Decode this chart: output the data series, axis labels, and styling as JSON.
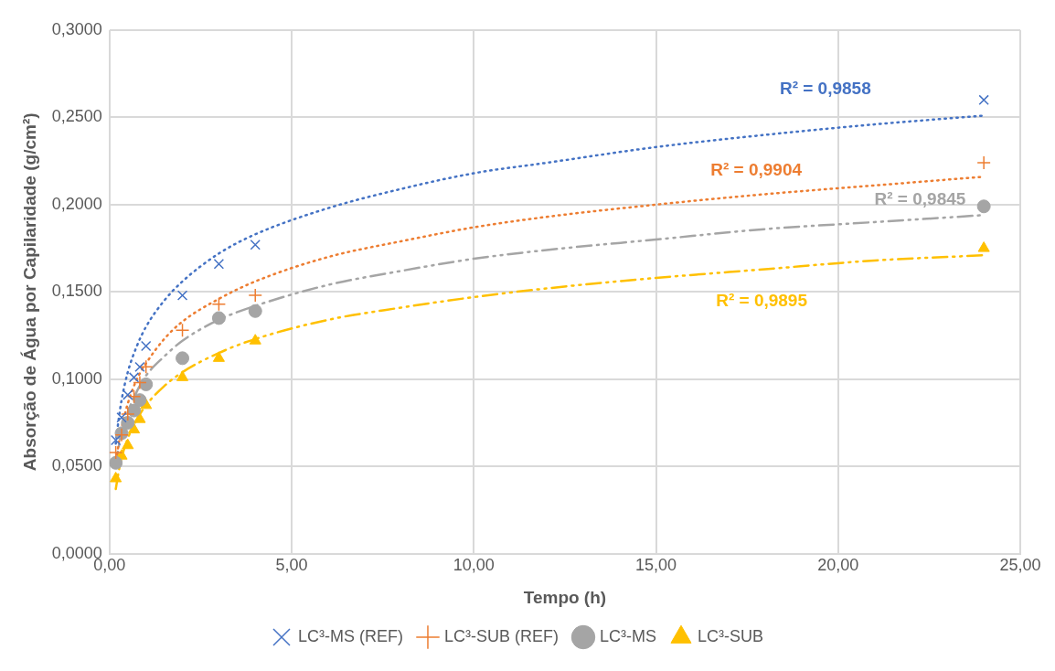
{
  "chart_data": {
    "type": "scatter",
    "xlabel": "Tempo (h)",
    "ylabel": "Absorção de Água por Capilaridade (g/cm²)",
    "xlim": [
      0,
      25
    ],
    "xticks": [
      {
        "value": 0,
        "label": "0,00"
      },
      {
        "value": 5,
        "label": "5,00"
      },
      {
        "value": 10,
        "label": "10,00"
      },
      {
        "value": 15,
        "label": "15,00"
      },
      {
        "value": 20,
        "label": "20,00"
      },
      {
        "value": 25,
        "label": "25,00"
      }
    ],
    "ylim": [
      0,
      0.3
    ],
    "yticks": [
      {
        "value": 0,
        "label": "0,0000"
      },
      {
        "value": 0.05,
        "label": "0,0500"
      },
      {
        "value": 0.1,
        "label": "0,1000"
      },
      {
        "value": 0.15,
        "label": "0,1500"
      },
      {
        "value": 0.2,
        "label": "0,2000"
      },
      {
        "value": 0.25,
        "label": "0,2500"
      },
      {
        "value": 0.3,
        "label": "0,3000"
      }
    ],
    "grid": true,
    "legend": "bottom",
    "x": [
      0.17,
      0.33,
      0.5,
      0.67,
      0.83,
      1,
      2,
      3,
      4,
      24
    ],
    "series": [
      {
        "name": "LC³-MS (REF)",
        "color": "#4472c4",
        "marker": "cross",
        "values": [
          0.065,
          0.078,
          0.091,
          0.101,
          0.107,
          0.119,
          0.148,
          0.166,
          0.177,
          0.26
        ]
      },
      {
        "name": "LC³-SUB (REF)",
        "color": "#ed7d31",
        "marker": "cross",
        "values": [
          0.058,
          0.068,
          0.08,
          0.09,
          0.098,
          0.107,
          0.128,
          0.143,
          0.148,
          0.224
        ]
      },
      {
        "name": "LC³-MS",
        "color": "#a5a5a5",
        "marker": "circle",
        "values": [
          0.052,
          0.069,
          0.075,
          0.082,
          0.088,
          0.097,
          0.112,
          0.135,
          0.139,
          0.199
        ]
      },
      {
        "name": "LC³-SUB",
        "color": "#ffc000",
        "marker": "triangle",
        "values": [
          0.043,
          0.056,
          0.062,
          0.071,
          0.077,
          0.085,
          0.101,
          0.112,
          0.122,
          0.175
        ]
      },
      {
        "type": "line",
        "color": "#4472c4",
        "line_style": "dotted",
        "x": [
          0.17,
          0.25,
          0.33,
          0.5,
          0.75,
          1,
          1.5,
          2,
          3,
          4,
          6,
          8,
          10,
          12,
          15,
          18,
          21,
          24
        ],
        "values": [
          0.063,
          0.077,
          0.088,
          0.104,
          0.119,
          0.13,
          0.145,
          0.156,
          0.172,
          0.183,
          0.198,
          0.209,
          0.218,
          0.224,
          0.233,
          0.24,
          0.246,
          0.251
        ]
      },
      {
        "type": "line",
        "color": "#ed7d31",
        "line_style": "dotted",
        "x": [
          0.17,
          0.25,
          0.33,
          0.5,
          0.75,
          1,
          1.5,
          2,
          3,
          4,
          6,
          8,
          10,
          12,
          15,
          18,
          21,
          24
        ],
        "values": [
          0.05,
          0.063,
          0.072,
          0.086,
          0.1,
          0.109,
          0.123,
          0.133,
          0.146,
          0.156,
          0.17,
          0.179,
          0.187,
          0.193,
          0.2,
          0.206,
          0.211,
          0.216
        ]
      },
      {
        "type": "line",
        "color": "#a5a5a5",
        "line_style": "dashed",
        "x": [
          0.17,
          0.25,
          0.33,
          0.5,
          0.75,
          1,
          1.5,
          2,
          3,
          4,
          6,
          8,
          10,
          12,
          15,
          18,
          21,
          24
        ],
        "values": [
          0.05,
          0.061,
          0.069,
          0.081,
          0.093,
          0.102,
          0.113,
          0.122,
          0.134,
          0.142,
          0.154,
          0.162,
          0.169,
          0.174,
          0.18,
          0.186,
          0.19,
          0.194
        ]
      },
      {
        "type": "line",
        "color": "#ffc000",
        "line_style": "dashed",
        "x": [
          0.17,
          0.25,
          0.33,
          0.5,
          0.75,
          1,
          1.5,
          2,
          3,
          4,
          6,
          8,
          10,
          12,
          15,
          18,
          21,
          24
        ],
        "values": [
          0.037,
          0.047,
          0.055,
          0.066,
          0.077,
          0.085,
          0.096,
          0.104,
          0.115,
          0.123,
          0.134,
          0.141,
          0.147,
          0.152,
          0.158,
          0.163,
          0.168,
          0.171
        ]
      }
    ],
    "annotations": [
      "R² = 0,9858",
      "R² = 0,9904",
      "R² = 0,9845",
      "R² = 0,9895"
    ]
  }
}
